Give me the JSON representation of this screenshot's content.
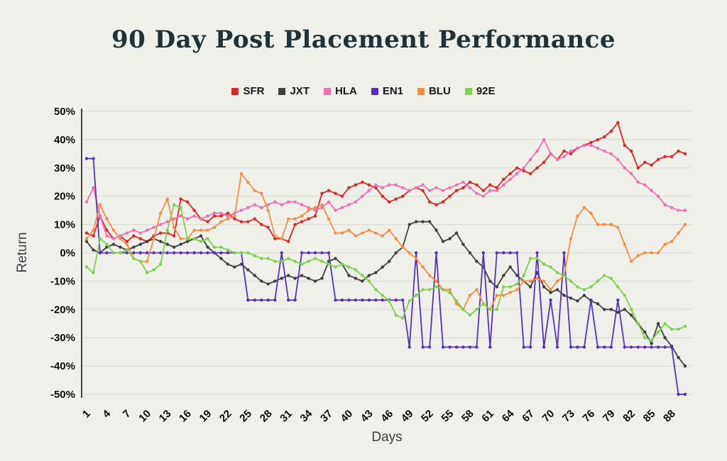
{
  "title": "90 Day Post Placement Performance",
  "colors": {
    "background": "#eef0e9",
    "grid": "#d8dace",
    "axis": "#1a1a1a",
    "tick_text": "#0d0d0d",
    "axis_label_text": "#3a3f44",
    "title_text": "#203239"
  },
  "chart_data": {
    "type": "line",
    "title": "90 Day Post Placement Performance",
    "xlabel": "Days",
    "ylabel": "Return",
    "x_range": [
      1,
      90
    ],
    "n_points": 90,
    "ylim": [
      -50,
      50
    ],
    "grid": "horizontal",
    "legend_position": "top",
    "markers": true,
    "y_ticks": [
      "50%",
      "40%",
      "30%",
      "20%",
      "10%",
      "0%",
      "-10%",
      "-20%",
      "-30%",
      "-40%",
      "-50%"
    ],
    "x_tick_labels": [
      "1",
      "4",
      "7",
      "10",
      "13",
      "16",
      "19",
      "22",
      "25",
      "28",
      "31",
      "34",
      "37",
      "40",
      "43",
      "46",
      "49",
      "52",
      "55",
      "58",
      "61",
      "64",
      "67",
      "70",
      "73",
      "76",
      "79",
      "82",
      "85",
      "88"
    ],
    "series": [
      {
        "name": "SFR",
        "color": "#e02421",
        "values": [
          7,
          6,
          13,
          8,
          5,
          6,
          4,
          6,
          5,
          4,
          6,
          7,
          7,
          6,
          19,
          18,
          15,
          12,
          11,
          13,
          13,
          14,
          12,
          11,
          11,
          12,
          10,
          9,
          5,
          5,
          4,
          10,
          11,
          12,
          13,
          21,
          22,
          21,
          20,
          23,
          24,
          25,
          24,
          23,
          20,
          18,
          19,
          20,
          22,
          23,
          22,
          18,
          17,
          18,
          20,
          22,
          23,
          25,
          24,
          22,
          24,
          23,
          26,
          28,
          30,
          29,
          28,
          30,
          32,
          35,
          33,
          36,
          35,
          37,
          38,
          39,
          40,
          41,
          43,
          46,
          38,
          36,
          30,
          32,
          31,
          33,
          34,
          34,
          36,
          35
        ]
      },
      {
        "name": "JXT",
        "color": "#3f3f3f",
        "values": [
          4,
          1,
          0,
          2,
          3,
          2,
          1,
          2,
          3,
          4,
          5,
          4,
          3,
          2,
          3,
          4,
          5,
          6,
          2,
          0,
          -2,
          -4,
          -5,
          -4,
          -6,
          -8,
          -10,
          -11,
          -10,
          -9,
          -8,
          -9,
          -8,
          -9,
          -10,
          -9,
          -3,
          -2,
          -4,
          -8,
          -9,
          -10,
          -8,
          -7,
          -5,
          -3,
          0,
          2,
          10,
          11,
          11,
          11,
          8,
          4,
          5,
          7,
          3,
          0,
          -3,
          -5,
          -10,
          -12,
          -8,
          -5,
          -8,
          -10,
          -12,
          -7,
          -12,
          -14,
          -13,
          -15,
          -16,
          -17,
          -15,
          -17,
          -18,
          -20,
          -20,
          -21,
          -20,
          -22,
          -25,
          -28,
          -32,
          -25,
          -30,
          -33,
          -37,
          -40
        ]
      },
      {
        "name": "HLA",
        "color": "#f06fb2",
        "values": [
          18,
          23,
          13,
          6,
          5,
          6,
          7,
          8,
          7,
          8,
          9,
          10,
          11,
          12,
          13,
          12,
          13,
          12,
          13,
          14,
          14,
          13,
          14,
          15,
          16,
          17,
          16,
          17,
          18,
          17,
          18,
          18,
          17,
          16,
          15,
          16,
          18,
          15,
          16,
          17,
          18,
          20,
          22,
          24,
          23,
          24,
          24,
          23,
          22,
          23,
          24,
          22,
          23,
          22,
          23,
          24,
          25,
          23,
          21,
          20,
          22,
          22,
          24,
          26,
          28,
          30,
          33,
          36,
          40,
          35,
          33,
          34,
          36,
          37,
          38,
          38,
          37,
          36,
          35,
          33,
          30,
          28,
          25,
          24,
          22,
          20,
          17,
          16,
          15,
          15
        ]
      },
      {
        "name": "EN1",
        "color": "#5a2fc0",
        "values": [
          33.3,
          33.3,
          0,
          0,
          0,
          0,
          0,
          0,
          0,
          0,
          0,
          0,
          0,
          0,
          0,
          0,
          0,
          0,
          0,
          0,
          0,
          0,
          0,
          0,
          -16.7,
          -16.7,
          -16.7,
          -16.7,
          -16.7,
          0,
          -16.7,
          -16.7,
          0,
          0,
          0,
          0,
          0,
          -16.7,
          -16.7,
          -16.7,
          -16.7,
          -16.7,
          -16.7,
          -16.7,
          -16.7,
          -16.7,
          -16.7,
          -16.7,
          -33.3,
          0,
          -33.3,
          -33.3,
          0,
          -33.3,
          -33.3,
          -33.3,
          -33.3,
          -33.3,
          -33.3,
          0,
          -33.3,
          0,
          0,
          0,
          0,
          -33.3,
          -33.3,
          0,
          -33.3,
          -16.7,
          -33.3,
          0,
          -33.3,
          -33.3,
          -33.3,
          -16.7,
          -33.3,
          -33.3,
          -33.3,
          -16.7,
          -33.3,
          -33.3,
          -33.3,
          -33.3,
          -33.3,
          -33.3,
          -33.3,
          -33.3,
          -50,
          -50
        ]
      },
      {
        "name": "BLU",
        "color": "#f68c44",
        "values": [
          5,
          8,
          17,
          12,
          8,
          5,
          3,
          -2,
          -3,
          -3,
          5,
          14,
          19,
          9,
          5,
          5,
          8,
          8,
          8,
          9,
          11,
          12,
          13,
          28,
          25,
          22,
          21,
          15,
          6,
          5,
          12,
          12,
          13,
          15,
          16,
          17,
          12,
          7,
          7,
          8,
          6,
          7,
          8,
          7,
          6,
          8,
          5,
          2,
          0,
          -2,
          -5,
          -8,
          -10,
          -13,
          -13,
          -18,
          -20,
          -15,
          -13,
          -18,
          -20,
          -15,
          -15,
          -14,
          -13,
          -10,
          -10,
          -9,
          -10,
          -13,
          -10,
          -8,
          5,
          13,
          16,
          14,
          10,
          10,
          10,
          9,
          3,
          -3,
          -1,
          0,
          0,
          0,
          3,
          4,
          7,
          10
        ]
      },
      {
        "name": "92E",
        "color": "#7fd04e",
        "values": [
          -5,
          -7,
          5,
          3,
          0,
          0,
          1,
          -2,
          -3,
          -7,
          -6,
          -4,
          8,
          17,
          16,
          5,
          5,
          4,
          5,
          2,
          2,
          1,
          0,
          0,
          0,
          -1,
          -2,
          -2,
          -3,
          -3,
          -2,
          -3,
          -4,
          -3,
          -2,
          -3,
          -4,
          -5,
          -4,
          -5,
          -6,
          -8,
          -10,
          -13,
          -15,
          -17,
          -22,
          -23,
          -17,
          -15,
          -13,
          -13,
          -12,
          -13,
          -14,
          -17,
          -20,
          -22,
          -20,
          -18,
          -20,
          -20,
          -12,
          -12,
          -11,
          -8,
          -2,
          -2,
          -4,
          -5,
          -7,
          -8,
          -10,
          -12,
          -13,
          -12,
          -10,
          -8,
          -9,
          -12,
          -15,
          -20,
          -25,
          -30,
          -31,
          -28,
          -25,
          -27,
          -27,
          -26
        ]
      }
    ]
  }
}
